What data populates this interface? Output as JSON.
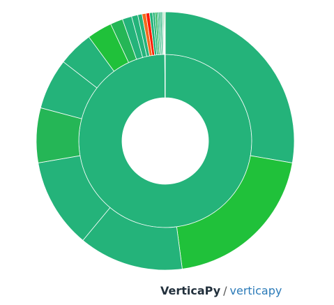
{
  "chart_data": {
    "type": "sunburst",
    "title": "",
    "inner_ring": [
      {
        "value": 99.9,
        "color": "#24b37a"
      },
      {
        "value": 0.1,
        "color": "#24b37a"
      }
    ],
    "outer_ring": [
      {
        "value": 28.3,
        "color": "#24b37a"
      },
      {
        "value": 20.6,
        "color": "#20c13a"
      },
      {
        "value": 13.4,
        "color": "#24b37a"
      },
      {
        "value": 11.5,
        "color": "#24b37a"
      },
      {
        "value": 7.0,
        "color": "#25b656"
      },
      {
        "value": 6.5,
        "color": "#24b37a"
      },
      {
        "value": 4.5,
        "color": "#24b37a"
      },
      {
        "value": 3.2,
        "color": "#20c13a"
      },
      {
        "value": 1.6,
        "color": "#25b656"
      },
      {
        "value": 1.2,
        "color": "#24b37a"
      },
      {
        "value": 0.8,
        "color": "#24b37a"
      },
      {
        "value": 0.55,
        "color": "#24b37a"
      },
      {
        "value": 0.5,
        "color": "#f26b1d"
      },
      {
        "value": 0.45,
        "color": "#ff1a00"
      },
      {
        "value": 0.4,
        "color": "#24b37a"
      },
      {
        "value": 0.3,
        "color": "#24b37a"
      },
      {
        "value": 0.25,
        "color": "#25b656"
      },
      {
        "value": 0.2,
        "color": "#24b37a"
      },
      {
        "value": 0.2,
        "color": "#24b37a"
      },
      {
        "value": 0.2,
        "color": "#24b37a"
      },
      {
        "value": 0.15,
        "color": "#24b37a"
      },
      {
        "value": 0.1,
        "color": "#20c13a"
      },
      {
        "value": 0.1,
        "color": "#24b37a"
      },
      {
        "value": 0.1,
        "color": "#e7e7c0"
      }
    ]
  },
  "footer": {
    "brand": "VerticaPy",
    "separator": "/",
    "repo": "verticapy"
  }
}
